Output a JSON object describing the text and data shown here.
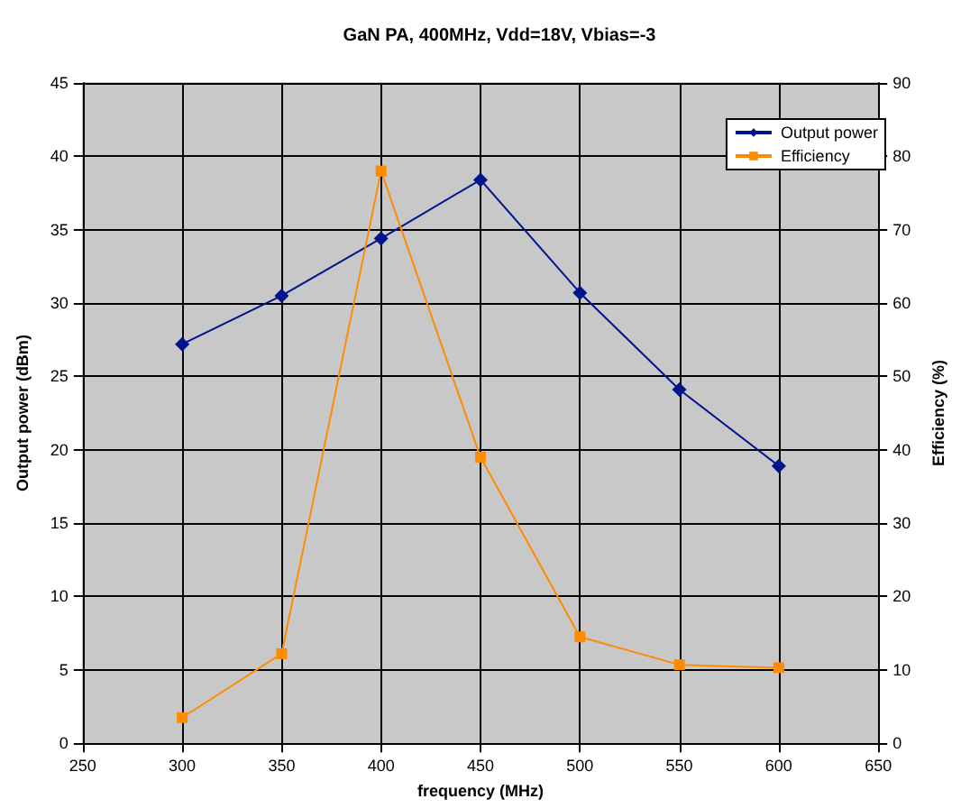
{
  "chart_data": {
    "type": "line",
    "title": "GaN PA, 400MHz, Vdd=18V, Vbias=-3",
    "xlabel": "frequency (MHz)",
    "ylabel": "Output power (dBm)",
    "y2label": "Efficiency (%)",
    "x": [
      300,
      350,
      400,
      450,
      500,
      550,
      600
    ],
    "series": [
      {
        "name": "Output power",
        "color": "#00148c",
        "marker": "diamond",
        "values": [
          27.2,
          30.5,
          34.4,
          38.4,
          30.7,
          24.1,
          18.9
        ]
      },
      {
        "name": "Efficiency",
        "color": "#ff8c00",
        "marker": "square",
        "axis": "y2",
        "values": [
          3.5,
          12.2,
          78,
          39,
          14.5,
          10.7,
          10.3
        ]
      }
    ],
    "xlim": [
      250,
      650
    ],
    "xticks": [
      250,
      300,
      350,
      400,
      450,
      500,
      550,
      600,
      650
    ],
    "ylim": [
      0,
      45
    ],
    "yticks": [
      0,
      5,
      10,
      15,
      20,
      25,
      30,
      35,
      40,
      45
    ],
    "y2lim": [
      0,
      90
    ],
    "y2ticks": [
      0,
      10,
      20,
      30,
      40,
      50,
      60,
      70,
      80,
      90
    ],
    "grid": true,
    "legend": "top right"
  }
}
